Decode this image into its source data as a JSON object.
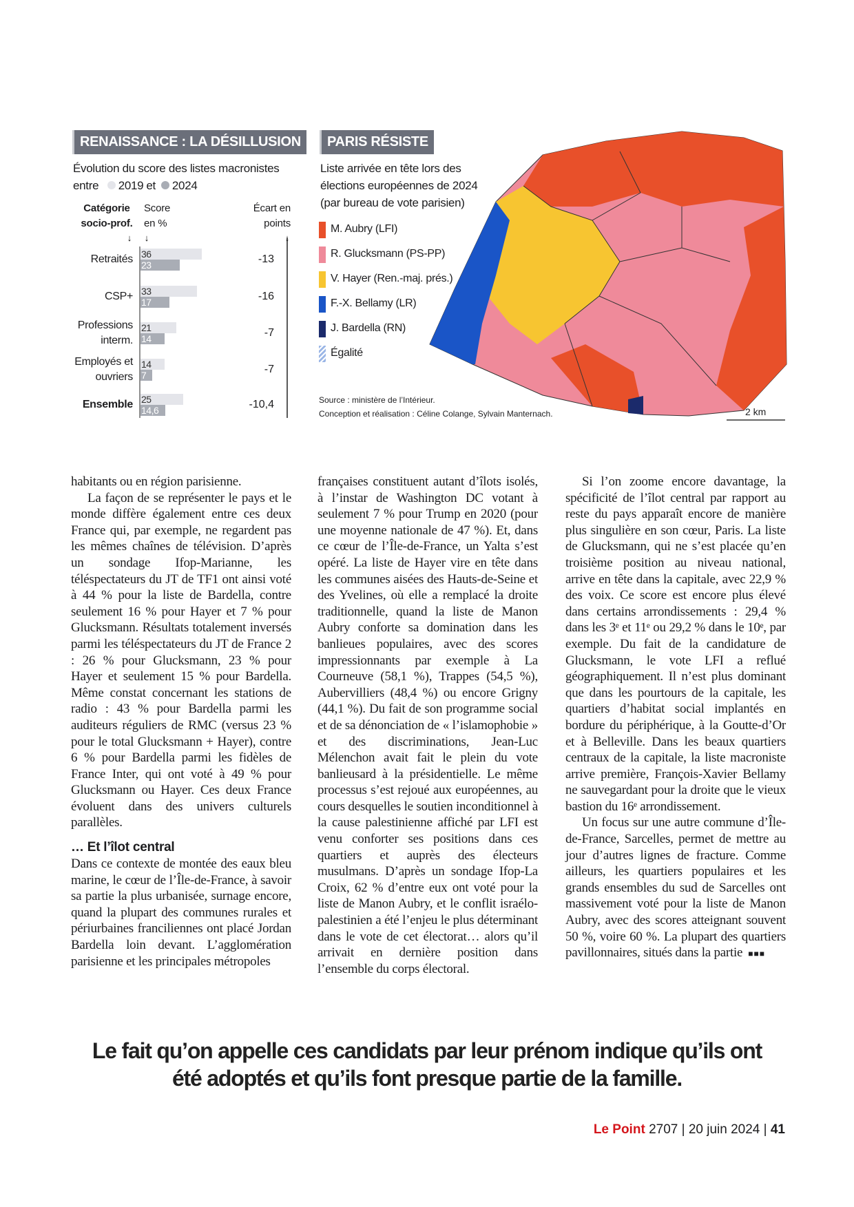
{
  "chart_data": {
    "type": "bar",
    "title": "RENAISSANCE : LA DÉSILLUSION",
    "subtitle": "Évolution du score des listes macronistes",
    "legend_intro": "entre",
    "legend_joiner": "et",
    "category_header": "Catégorie socio-prof.",
    "value_header": "Score en %",
    "gap_header": "Écart en points",
    "categories": [
      "Retraités",
      "CSP+",
      "Professions interm.",
      "Employés et ouvriers",
      "Ensemble"
    ],
    "series": [
      {
        "name": "2019",
        "color": "#e4e5ea",
        "values": [
          36,
          33,
          21,
          14,
          25
        ]
      },
      {
        "name": "2024",
        "color": "#a9adb5",
        "values": [
          23,
          17,
          14,
          7,
          14.6
        ],
        "value_labels": [
          "23",
          "17",
          "14",
          "7",
          "14,6"
        ]
      }
    ],
    "gap": {
      "values": [
        -13,
        -16,
        -7,
        -7,
        -10.4
      ],
      "value_labels": [
        "-13",
        "-16",
        "-7",
        "-7",
        "-10,4"
      ]
    }
  },
  "map": {
    "title": "PARIS RÉSISTE",
    "subtitle": "Liste arrivée en tête lors des élections européennes de 2024 (par bureau de vote parisien)",
    "legend": [
      {
        "label": "M. Aubry (LFI)",
        "color": "#e8502a"
      },
      {
        "label": "R. Glucksmann (PS-PP)",
        "color": "#ef8a9a"
      },
      {
        "label": "V. Hayer (Ren.-maj. prés.)",
        "color": "#f7c531"
      },
      {
        "label": "F.-X. Bellamy (LR)",
        "color": "#1a55c7"
      },
      {
        "label": "J. Bardella (RN)",
        "color": "#1b2a6b"
      },
      {
        "label": "Égalité",
        "color": "#9bb6e6"
      }
    ],
    "source": "Source : ministère de l’Intérieur.",
    "credits": "Conception et réalisation : Céline Colange, Sylvain Manternach.",
    "scale": "2 km"
  },
  "article": {
    "columns": [
      [
        {
          "kind": "p",
          "text": "habitants ou en région parisienne."
        },
        {
          "kind": "p",
          "indent": true,
          "text": "La façon de se représenter le pays et le monde diffère également entre ces deux France qui, par exemple, ne regardent pas les mêmes chaînes de télévision. D’après un sondage Ifop-Marianne, les téléspectateurs du JT de TF1 ont ainsi voté à 44 % pour la liste de Bardella, contre seulement 16 % pour Hayer et 7 % pour Glucksmann. Résultats totalement inversés parmi les téléspectateurs du JT de France 2 : 26 % pour Glucksmann, 23 % pour Hayer et seulement 15 % pour Bardella. Même constat concernant les stations de radio : 43 % pour Bardella parmi les auditeurs réguliers de RMC (versus 23 % pour le total Glucksmann + Hayer), contre 6 % pour Bardella parmi les fidèles de France Inter, qui ont voté à 49 % pour Glucksmann ou Hayer. Ces deux France évoluent dans des univers culturels parallèles."
        },
        {
          "kind": "h",
          "text": "… Et l’îlot central"
        },
        {
          "kind": "p",
          "text": "Dans ce contexte de montée des eaux bleu marine, le cœur de l’Île-de-France, à savoir sa partie la plus urbanisée, surnage encore, quand la plupart des communes rurales et périurbaines franciliennes ont placé Jordan Bardella loin devant. L’agglomération parisienne et les principales métropoles"
        }
      ],
      [
        {
          "kind": "p",
          "text": "françaises constituent autant d’îlots isolés, à l’instar de Washington DC votant à seulement 7 % pour Trump en 2020 (pour une moyenne nationale de 47 %). Et, dans ce cœur de l’Île-de-France, un Yalta s’est opéré. La liste de Hayer vire en tête dans les communes aisées des Hauts-de-Seine et des Yvelines, où elle a remplacé la droite traditionnelle, quand la liste de Manon Aubry conforte sa domination dans les banlieues populaires, avec des scores impressionnants par exemple à La Courneuve (58,1 %), Trappes (54,5 %), Aubervilliers (48,4 %) ou encore Grigny (44,1 %). Du fait de son programme social et de sa dénonciation de « l’islamophobie » et des discriminations, Jean-Luc Mélenchon avait fait le plein du vote banlieusard à la présidentielle. Le même processus s’est rejoué aux européennes, au cours desquelles le soutien inconditionnel à la cause palestinienne affiché par LFI est venu conforter ses positions dans ces quartiers et auprès des électeurs musulmans. D’après un sondage Ifop-La Croix, 62 % d’entre eux ont voté pour la liste de Manon Aubry, et le conflit israélo-palestinien a été l’enjeu le plus déterminant dans le vote de cet électorat… alors qu’il arrivait en dernière position dans l’ensemble du corps électoral."
        }
      ],
      [
        {
          "kind": "p",
          "indent": true,
          "text": "Si l’on zoome encore davantage, la spécificité de l’îlot central par rapport au reste du pays apparaît encore de manière plus singulière en son cœur, Paris. La liste de Glucksmann, qui ne s’est placée qu’en troisième position au niveau national, arrive en tête dans la capitale, avec 22,9 % des voix. Ce score est encore plus élevé dans certains arrondissements : 29,4 % dans les 3ᵉ et 11ᵉ ou 29,2 % dans le 10ᵉ, par exemple. Du fait de la candidature de Glucksmann, le vote LFI a reflué géographiquement. Il n’est plus dominant que dans les pourtours de la capitale, les quartiers d’habitat social implantés en bordure du périphérique, à la Goutte-d’Or et à Belleville. Dans les beaux quartiers centraux de la capitale, la liste macroniste arrive première, François-Xavier Bellamy ne sauvegardant pour la droite que le vieux bastion du 16ᵉ arrondissement."
        },
        {
          "kind": "p",
          "indent": true,
          "text": "Un focus sur une autre commune d’Île-de-France, Sarcelles, permet de mettre au jour d’autres lignes de fracture. Comme ailleurs, les quartiers populaires et les grands ensembles du sud de Sarcelles ont massivement voté pour la liste de Manon Aubry, avec des scores atteignant souvent 50 %, voire 60 %. La plupart des quartiers pavillonnaires, situés dans la partie"
        }
      ]
    ],
    "pull_quote": "Le fait qu’on appelle ces candidats par leur prénom indique qu’ils ont été adoptés et qu’ils font presque partie de la famille."
  },
  "footer": {
    "brand": "Le Point",
    "issue": "2707 | 20 juin 2024 |",
    "page": "41"
  }
}
